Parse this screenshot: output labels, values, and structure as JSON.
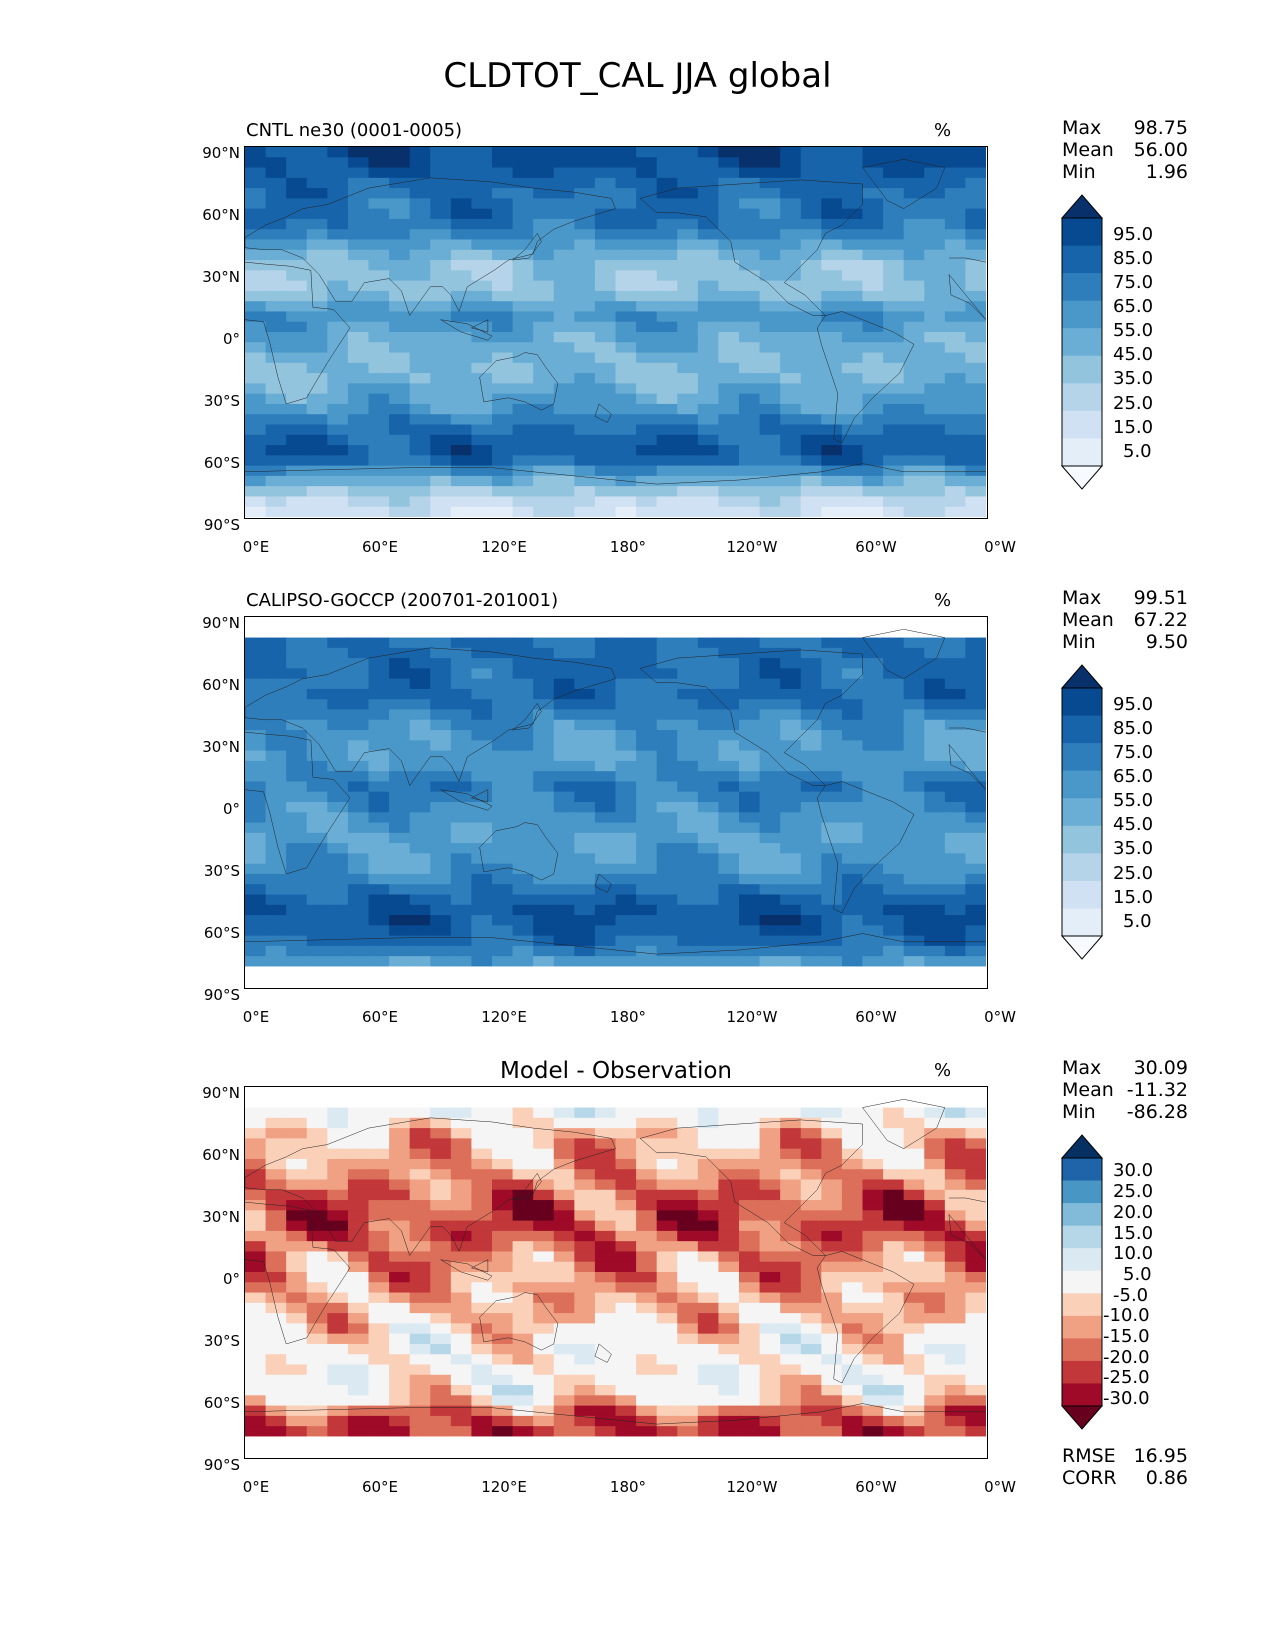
{
  "figure_title": "CLDTOT_CAL JJA global",
  "units_label": "%",
  "x_tick_labels": [
    "0°E",
    "60°E",
    "120°E",
    "180°",
    "120°W",
    "60°W",
    "0°W"
  ],
  "y_tick_labels": [
    "90°N",
    "60°N",
    "30°N",
    "0°",
    "30°S",
    "60°S",
    "90°S"
  ],
  "colors": {
    "blues": [
      "#f7fbff",
      "#e3eef9",
      "#cfe1f2",
      "#b5d4e9",
      "#93c4de",
      "#6aaed6",
      "#4a98c9",
      "#2e7ebc",
      "#1764ab",
      "#084a91",
      "#08306b"
    ],
    "diff": [
      "#67001f",
      "#9e0a27",
      "#c1373a",
      "#dc6f59",
      "#f0a083",
      "#fad0b9",
      "#f5f5f5",
      "#dbeaf2",
      "#b5d7e8",
      "#82bbd9",
      "#4896c4",
      "#1f64a9",
      "#053061"
    ]
  },
  "chart_data": [
    {
      "type": "contour-map",
      "panel": "test",
      "title": "CNTL ne30 (0001-0005)",
      "units": "%",
      "stats": {
        "labels": [
          "Max",
          "Mean",
          "Min"
        ],
        "values": [
          "98.75",
          "56.00",
          "1.96"
        ]
      },
      "colorbar_levels": [
        "95.0",
        "85.0",
        "75.0",
        "65.0",
        "55.0",
        "45.0",
        "35.0",
        "25.0",
        "15.0",
        "5.0"
      ],
      "xlim": [
        0,
        360
      ],
      "ylim": [
        -90,
        90
      ],
      "zonal_mean_profile": [
        {
          "lat": 85,
          "v": 92
        },
        {
          "lat": 65,
          "v": 80
        },
        {
          "lat": 50,
          "v": 78
        },
        {
          "lat": 35,
          "v": 48
        },
        {
          "lat": 20,
          "v": 45
        },
        {
          "lat": 8,
          "v": 68
        },
        {
          "lat": -5,
          "v": 55
        },
        {
          "lat": -20,
          "v": 50
        },
        {
          "lat": -35,
          "v": 62
        },
        {
          "lat": -50,
          "v": 85
        },
        {
          "lat": -60,
          "v": 90
        },
        {
          "lat": -70,
          "v": 60
        },
        {
          "lat": -85,
          "v": 25
        }
      ]
    },
    {
      "type": "contour-map",
      "panel": "reference",
      "title": "CALIPSO-GOCCP (200701-201001)",
      "units": "%",
      "stats": {
        "labels": [
          "Max",
          "Mean",
          "Min"
        ],
        "values": [
          "99.51",
          "67.22",
          "9.50"
        ]
      },
      "colorbar_levels": [
        "95.0",
        "85.0",
        "75.0",
        "65.0",
        "55.0",
        "45.0",
        "35.0",
        "25.0",
        "15.0",
        "5.0"
      ],
      "xlim": [
        0,
        360
      ],
      "ylim": [
        -90,
        90
      ],
      "data_lat_range": [
        -82,
        82
      ],
      "zonal_mean_profile": [
        {
          "lat": 80,
          "v": 80
        },
        {
          "lat": 65,
          "v": 82
        },
        {
          "lat": 50,
          "v": 82
        },
        {
          "lat": 35,
          "v": 65
        },
        {
          "lat": 20,
          "v": 62
        },
        {
          "lat": 8,
          "v": 78
        },
        {
          "lat": -5,
          "v": 68
        },
        {
          "lat": -20,
          "v": 60
        },
        {
          "lat": -35,
          "v": 68
        },
        {
          "lat": -50,
          "v": 88
        },
        {
          "lat": -60,
          "v": 90
        },
        {
          "lat": -70,
          "v": 80
        },
        {
          "lat": -80,
          "v": 60
        }
      ]
    },
    {
      "type": "contour-map",
      "panel": "difference",
      "title": "Model - Observation",
      "units": "%",
      "stats": {
        "labels": [
          "Max",
          "Mean",
          "Min"
        ],
        "values": [
          "30.09",
          "-11.32",
          "-86.28"
        ]
      },
      "extra_stats": {
        "labels": [
          "RMSE",
          "CORR"
        ],
        "values": [
          "16.95",
          "0.86"
        ]
      },
      "colorbar_levels": [
        "30.0",
        "25.0",
        "20.0",
        "15.0",
        "10.0",
        "5.0",
        "-5.0",
        "-10.0",
        "-15.0",
        "-20.0",
        "-25.0",
        "-30.0"
      ],
      "xlim": [
        0,
        360
      ],
      "ylim": [
        -90,
        90
      ],
      "data_lat_range": [
        -82,
        82
      ],
      "zonal_mean_profile": [
        {
          "lat": 80,
          "v": 5
        },
        {
          "lat": 65,
          "v": -10
        },
        {
          "lat": 50,
          "v": -12
        },
        {
          "lat": 35,
          "v": -20
        },
        {
          "lat": 20,
          "v": -22
        },
        {
          "lat": 8,
          "v": -15
        },
        {
          "lat": -5,
          "v": -12
        },
        {
          "lat": -20,
          "v": -10
        },
        {
          "lat": -35,
          "v": -2
        },
        {
          "lat": -50,
          "v": -1
        },
        {
          "lat": -60,
          "v": -3
        },
        {
          "lat": -70,
          "v": -20
        },
        {
          "lat": -80,
          "v": -25
        }
      ]
    }
  ]
}
